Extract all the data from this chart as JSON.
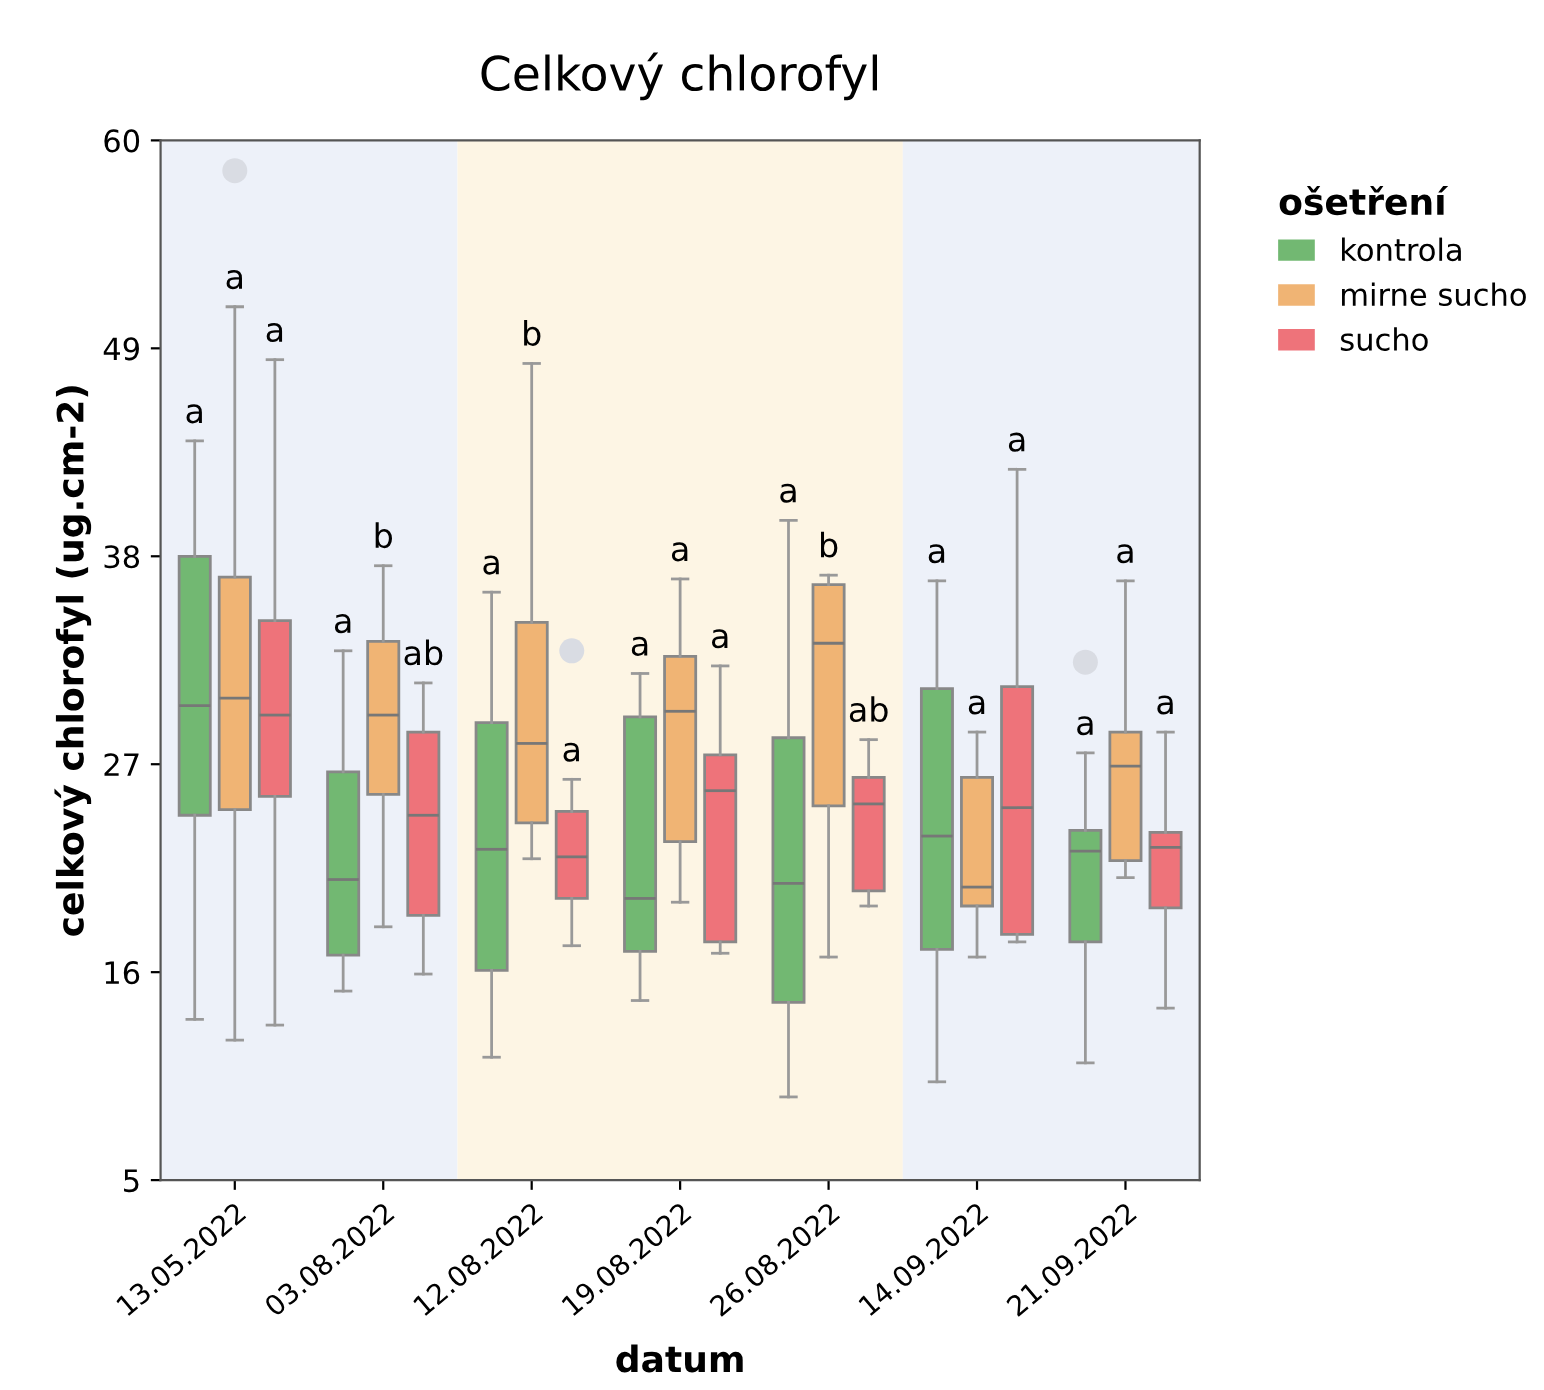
{
  "chart_data": {
    "type": "box",
    "title": "Celkový chlorofyl",
    "xlabel": "datum",
    "ylabel": "celkový chlorofyl (ug.cm-2)",
    "legend_title": "ošetření",
    "legend": "top right",
    "categories": [
      "13.05.2022",
      "03.08.2022",
      "12.08.2022",
      "19.08.2022",
      "26.08.2022",
      "14.09.2022",
      "21.09.2022"
    ],
    "ylim": [
      5,
      60
    ],
    "yticks": [
      5,
      16,
      27,
      38,
      49,
      60
    ],
    "grid": false,
    "bands": [
      {
        "axis": "x",
        "from": "13.05.2022",
        "to": "03.08.2022",
        "color": "#edf1f9"
      },
      {
        "axis": "x",
        "from": "12.08.2022",
        "to": "26.08.2022",
        "color": "#fdf5e4"
      },
      {
        "axis": "x",
        "from": "14.09.2022",
        "to": "21.09.2022",
        "color": "#edf1f9"
      }
    ],
    "series": [
      {
        "name": "kontrola",
        "color": "#72b872",
        "boxes": [
          {
            "low": 13.5,
            "q1": 24.3,
            "median": 30.1,
            "q3": 38.0,
            "high": 44.1
          },
          {
            "low": 15.0,
            "q1": 16.9,
            "median": 20.9,
            "q3": 26.6,
            "high": 33.0
          },
          {
            "low": 11.5,
            "q1": 16.1,
            "median": 22.5,
            "q3": 29.2,
            "high": 36.1
          },
          {
            "low": 14.5,
            "q1": 17.1,
            "median": 19.9,
            "q3": 29.5,
            "high": 31.8
          },
          {
            "low": 9.4,
            "q1": 14.4,
            "median": 20.7,
            "q3": 28.4,
            "high": 39.9
          },
          {
            "low": 10.2,
            "q1": 17.2,
            "median": 23.2,
            "q3": 31.0,
            "high": 36.7
          },
          {
            "low": 11.2,
            "q1": 17.6,
            "median": 22.4,
            "q3": 23.5,
            "high": 27.6,
            "outliers": [
              32.4
            ]
          }
        ]
      },
      {
        "name": "mirne sucho",
        "color": "#f0b474",
        "boxes": [
          {
            "low": 12.4,
            "q1": 24.6,
            "median": 30.5,
            "q3": 36.9,
            "high": 51.2,
            "outliers": [
              58.4
            ]
          },
          {
            "low": 18.4,
            "q1": 25.4,
            "median": 29.6,
            "q3": 33.5,
            "high": 37.5
          },
          {
            "low": 22.0,
            "q1": 23.9,
            "median": 28.1,
            "q3": 34.5,
            "high": 48.2
          },
          {
            "low": 19.7,
            "q1": 22.9,
            "median": 29.8,
            "q3": 32.7,
            "high": 36.8
          },
          {
            "low": 16.8,
            "q1": 24.8,
            "median": 33.4,
            "q3": 36.5,
            "high": 37.0
          },
          {
            "low": 16.8,
            "q1": 19.5,
            "median": 20.5,
            "q3": 26.3,
            "high": 28.7
          },
          {
            "low": 21.0,
            "q1": 21.9,
            "median": 26.9,
            "q3": 28.7,
            "high": 36.7
          }
        ]
      },
      {
        "name": "sucho",
        "color": "#ee737a",
        "boxes": [
          {
            "low": 13.2,
            "q1": 25.3,
            "median": 29.6,
            "q3": 34.6,
            "high": 48.4
          },
          {
            "low": 15.9,
            "q1": 19.0,
            "median": 24.3,
            "q3": 28.7,
            "high": 31.3
          },
          {
            "low": 17.4,
            "q1": 19.9,
            "median": 22.1,
            "q3": 24.5,
            "high": 26.2,
            "outliers": [
              33.0
            ]
          },
          {
            "low": 17.0,
            "q1": 17.6,
            "median": 25.6,
            "q3": 27.5,
            "high": 32.2
          },
          {
            "low": 19.5,
            "q1": 20.3,
            "median": 24.9,
            "q3": 26.3,
            "high": 28.3
          },
          {
            "low": 17.6,
            "q1": 18.0,
            "median": 24.7,
            "q3": 31.1,
            "high": 42.6
          },
          {
            "low": 14.1,
            "q1": 19.4,
            "median": 22.6,
            "q3": 23.4,
            "high": 28.7
          }
        ]
      }
    ],
    "annotations": [
      "a",
      "a",
      "a",
      "a",
      "b",
      "ab",
      "a",
      "b",
      "a",
      "a",
      "a",
      "a",
      "a",
      "b",
      "ab",
      "a",
      "a",
      "a",
      "a",
      "a",
      "a"
    ]
  }
}
